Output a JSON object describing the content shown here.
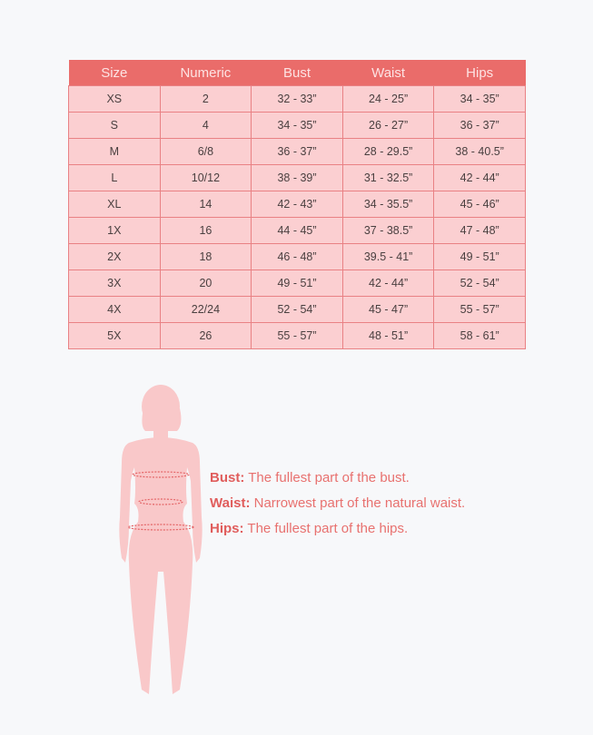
{
  "table": {
    "headers": [
      "Size",
      "Numeric",
      "Bust",
      "Waist",
      "Hips"
    ],
    "rows": [
      [
        "XS",
        "2",
        "32  -  33”",
        "24 - 25”",
        "34 - 35”"
      ],
      [
        "S",
        "4",
        "34 - 35”",
        "26 - 27”",
        "36 - 37”"
      ],
      [
        "M",
        "6/8",
        "36 - 37”",
        "28 - 29.5”",
        "38 - 40.5”"
      ],
      [
        "L",
        "10/12",
        "38 - 39”",
        "31 - 32.5”",
        "42 - 44”"
      ],
      [
        "XL",
        "14",
        "42 - 43”",
        "34 - 35.5”",
        "45 - 46”"
      ],
      [
        "1X",
        "16",
        "44 - 45”",
        "37 - 38.5”",
        "47 - 48”"
      ],
      [
        "2X",
        "18",
        "46 - 48”",
        "39.5 - 41”",
        "49 - 51”"
      ],
      [
        "3X",
        "20",
        "49 - 51”",
        "42 - 44”",
        "52 - 54”"
      ],
      [
        "4X",
        "22/24",
        "52 - 54”",
        "45 - 47”",
        "55 - 57”"
      ],
      [
        "5X",
        "26",
        "55 - 57”",
        "48 - 51”",
        "58 - 61”"
      ]
    ]
  },
  "legend": [
    {
      "term": "Bust:",
      "desc": "The fullest part of the bust."
    },
    {
      "term": "Waist:",
      "desc": "Narrowest part of the natural waist."
    },
    {
      "term": "Hips:",
      "desc": "The fullest part of the hips."
    }
  ],
  "colors": {
    "header": "#ea6c6a",
    "cell": "#fbcfd1",
    "border": "#e98184",
    "accent": "#e05d5c",
    "silhouette": "#f9c8c9"
  }
}
